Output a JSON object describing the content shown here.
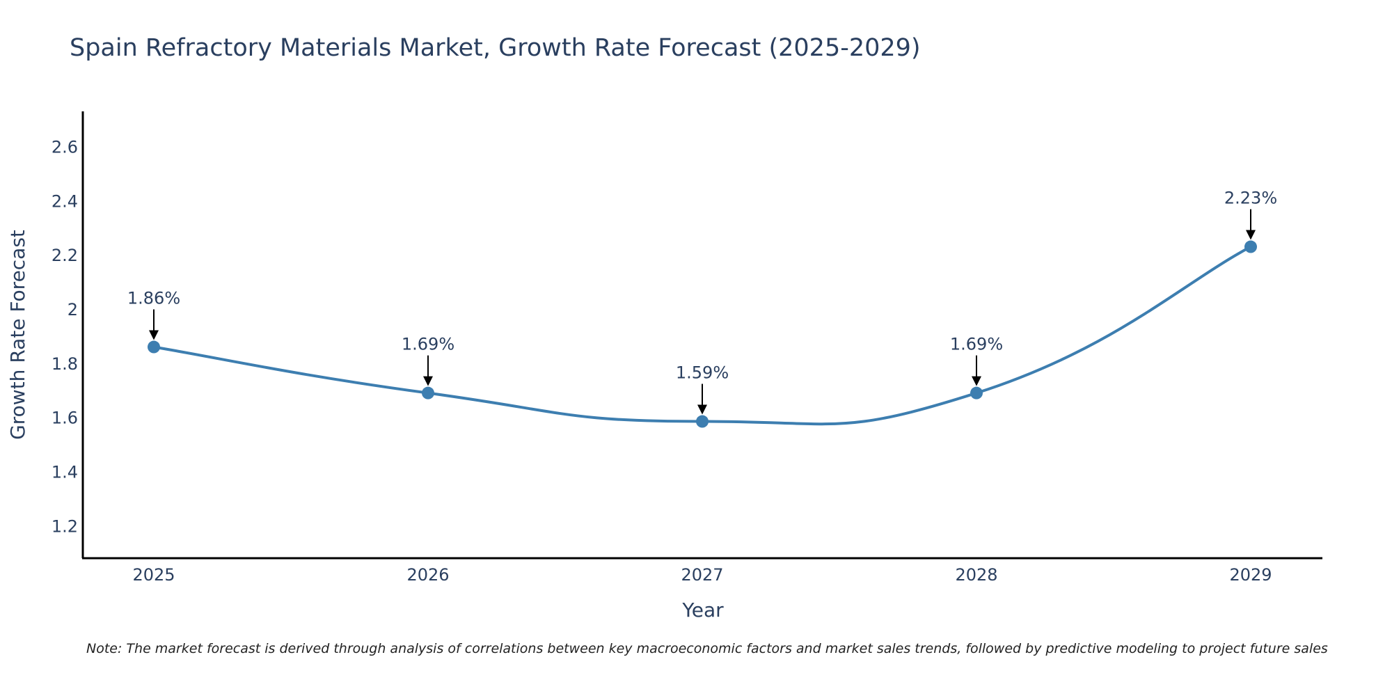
{
  "chart_data": {
    "type": "line",
    "title": "Spain Refractory Materials Market, Growth Rate Forecast (2025-2029)",
    "xlabel": "Year",
    "ylabel": "Growth Rate Forecast",
    "categories": [
      "2025",
      "2026",
      "2027",
      "2028",
      "2029"
    ],
    "values": [
      1.86,
      1.69,
      1.585,
      1.69,
      2.23
    ],
    "annotations": [
      "1.86%",
      "1.69%",
      "1.59%",
      "1.69%",
      "2.23%"
    ],
    "ylim": [
      1.08,
      2.73
    ],
    "yticks": [
      1.2,
      1.4,
      1.6,
      1.8,
      2,
      2.2,
      2.4,
      2.6
    ],
    "ytick_labels": [
      "1.2",
      "1.4",
      "1.6",
      "1.8",
      "2",
      "2.2",
      "2.4",
      "2.6"
    ],
    "line_color": "#3d7eb0",
    "grid": false
  },
  "note": "Note: The market forecast is derived through analysis of correlations between key macroeconomic factors and market sales trends, followed by predictive modeling to project future sales"
}
